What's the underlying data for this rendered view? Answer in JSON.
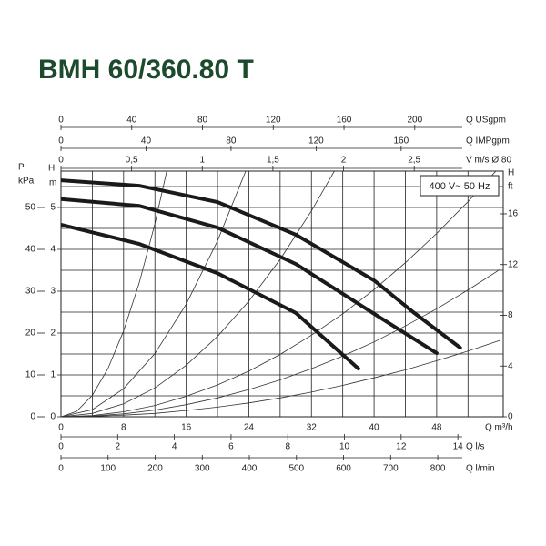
{
  "chart_data": {
    "type": "line",
    "title": "BMH 60/360.80 T",
    "badge": "400 V~ 50 Hz",
    "xlabel": "Q m³/h",
    "xlim": [
      0,
      56.5
    ],
    "xticks": [
      0,
      8,
      16,
      24,
      32,
      40,
      48
    ],
    "x_minor_ticks": [
      4,
      12,
      20,
      28,
      36,
      44,
      52
    ],
    "ylabel": [
      "H",
      "m"
    ],
    "ylim": [
      0,
      5.87
    ],
    "yticks": [
      0,
      1,
      2,
      3,
      4,
      5
    ],
    "y_minor_ticks": [
      0.5,
      1.5,
      2.5,
      3.5,
      4.5,
      5.5
    ],
    "extra_axes": [
      {
        "position": "top",
        "label": "Q USgpm",
        "lim": [
          0,
          250
        ],
        "ticks": [
          0,
          40,
          80,
          120,
          160,
          200
        ]
      },
      {
        "position": "top",
        "label": "Q IMPgpm",
        "lim": [
          0,
          208
        ],
        "ticks": [
          0,
          40,
          80,
          120,
          160
        ]
      },
      {
        "position": "top",
        "label": "V m/s Ø 80",
        "lim": [
          0,
          3.13
        ],
        "ticks": [
          0,
          {
            "value": 0.5,
            "label": "0,5"
          },
          1,
          {
            "value": 1.5,
            "label": "1,5"
          },
          2,
          {
            "value": 2.5,
            "label": "2,5"
          }
        ]
      },
      {
        "position": "bottom",
        "label": "Q l/s",
        "lim": [
          0,
          15.6
        ],
        "ticks": [
          0,
          2,
          4,
          6,
          8,
          10,
          12,
          14
        ]
      },
      {
        "position": "bottom",
        "label": "Q l/min",
        "lim": [
          0,
          939
        ],
        "ticks": [
          0,
          100,
          200,
          300,
          400,
          500,
          600,
          700,
          800
        ]
      },
      {
        "position": "left",
        "label": [
          "P",
          "kPa"
        ],
        "lim": [
          0,
          58.7
        ],
        "ticks": [
          0,
          10,
          20,
          30,
          40,
          50
        ]
      },
      {
        "position": "right",
        "label": [
          "H",
          "ft"
        ],
        "lim": [
          0,
          19.37
        ],
        "ticks": [
          0,
          4,
          8,
          12,
          16
        ]
      }
    ],
    "series": [
      {
        "color": "#1a1a1a",
        "x": [
          0,
          10,
          20,
          30,
          40,
          45,
          51
        ],
        "values": [
          5.65,
          5.52,
          5.13,
          4.35,
          3.26,
          2.5,
          1.65
        ]
      },
      {
        "color": "#1a1a1a",
        "x": [
          0,
          10,
          20,
          30,
          40,
          48
        ],
        "values": [
          5.2,
          5.04,
          4.52,
          3.65,
          2.46,
          1.52
        ]
      },
      {
        "color": "#1a1a1a",
        "x": [
          0,
          10,
          20,
          30,
          38
        ],
        "values": [
          4.59,
          4.13,
          3.43,
          2.48,
          1.15
        ]
      }
    ],
    "system_curves": [
      {
        "x": [
          0,
          2,
          4,
          6,
          8,
          10,
          12,
          14
        ],
        "values": [
          0,
          0.13,
          0.51,
          1.15,
          2.05,
          3.2,
          4.61,
          6.27
        ]
      },
      {
        "x": [
          0,
          4,
          8,
          12,
          16,
          20,
          24
        ],
        "values": [
          0,
          0.17,
          0.67,
          1.51,
          2.69,
          4.2,
          6.05
        ]
      },
      {
        "x": [
          0,
          4,
          8,
          12,
          16,
          20,
          24,
          28,
          32,
          36
        ],
        "values": [
          0,
          0.08,
          0.31,
          0.69,
          1.23,
          1.92,
          2.76,
          3.76,
          4.92,
          6.22
        ]
      },
      {
        "x": [
          0,
          4,
          8,
          12,
          16,
          20,
          24,
          28,
          32,
          36,
          40,
          44,
          48,
          52,
          56
        ],
        "values": [
          0,
          0.03,
          0.12,
          0.27,
          0.49,
          0.76,
          1.09,
          1.49,
          1.95,
          2.46,
          3.04,
          3.68,
          4.38,
          5.14,
          5.96
        ]
      },
      {
        "x": [
          0,
          4,
          8,
          12,
          16,
          20,
          24,
          28,
          32,
          36,
          40,
          44,
          48,
          52,
          56
        ],
        "values": [
          0,
          0.02,
          0.07,
          0.16,
          0.29,
          0.45,
          0.65,
          0.88,
          1.15,
          1.45,
          1.79,
          2.17,
          2.58,
          3.03,
          3.51
        ]
      },
      {
        "x": [
          0,
          4,
          8,
          12,
          16,
          20,
          24,
          28,
          32,
          36,
          40,
          44,
          48,
          52,
          56
        ],
        "values": [
          0,
          0.01,
          0.04,
          0.08,
          0.15,
          0.23,
          0.33,
          0.45,
          0.59,
          0.75,
          0.93,
          1.12,
          1.34,
          1.57,
          1.82
        ]
      }
    ]
  }
}
